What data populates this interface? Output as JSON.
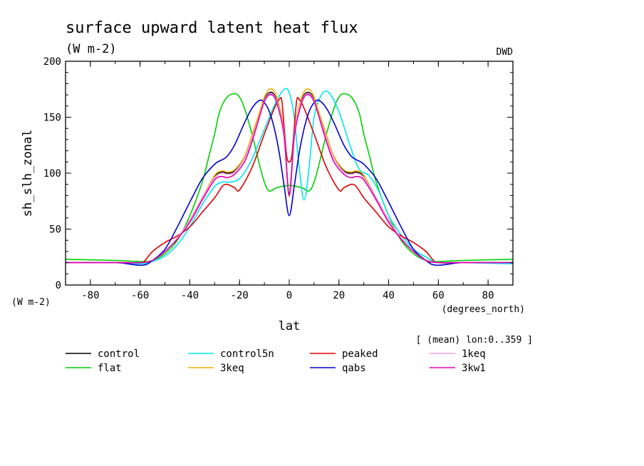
{
  "title": "surface upward latent heat flux",
  "units_top": "(W m-2)",
  "source": "DWD",
  "ylabel": "sh_slh_zonal",
  "y_units": "(W m-2)",
  "xlabel": "lat",
  "x_units": "(degrees_north)",
  "annotation": "[ (mean) lon:0..359 ]",
  "chart_data": {
    "type": "line",
    "title": "surface upward latent heat flux",
    "xlabel": "lat",
    "ylabel": "sh_slh_zonal",
    "xlim": [
      -90,
      90
    ],
    "ylim": [
      0,
      200
    ],
    "x_ticks": [
      -80,
      -60,
      -40,
      -20,
      0,
      20,
      40,
      60,
      80
    ],
    "y_ticks": [
      0,
      50,
      100,
      150,
      200
    ],
    "legend_position": "bottom",
    "series": [
      {
        "name": "control",
        "color": "#000000",
        "x": [
          -90,
          -70,
          -60,
          -55,
          -50,
          -45,
          -40,
          -35,
          -30,
          -27,
          -25,
          -22,
          -18,
          -15,
          -12,
          -10,
          -8,
          -6,
          -4,
          -2,
          0,
          2,
          4,
          6,
          8,
          10,
          12,
          15,
          18,
          22,
          25,
          27,
          30,
          35,
          40,
          45,
          50,
          55,
          60,
          70,
          90
        ],
        "y": [
          20,
          20,
          20,
          22,
          30,
          42,
          58,
          78,
          97,
          101,
          100,
          102,
          114,
          132,
          152,
          166,
          172,
          170,
          158,
          135,
          82,
          135,
          158,
          170,
          172,
          166,
          152,
          132,
          114,
          102,
          100,
          101,
          97,
          78,
          58,
          42,
          30,
          22,
          20,
          20,
          20
        ]
      },
      {
        "name": "flat",
        "color": "#00d000",
        "x": [
          -90,
          -70,
          -60,
          -55,
          -50,
          -45,
          -40,
          -35,
          -32,
          -30,
          -28,
          -25,
          -22,
          -20,
          -18,
          -15,
          -12,
          -10,
          -8,
          -5,
          0,
          5,
          8,
          10,
          12,
          15,
          18,
          20,
          22,
          25,
          28,
          30,
          32,
          35,
          40,
          45,
          50,
          55,
          60,
          70,
          90
        ],
        "y": [
          23,
          22,
          21,
          22,
          28,
          40,
          62,
          92,
          118,
          135,
          155,
          168,
          171,
          168,
          158,
          135,
          108,
          92,
          84,
          87,
          89,
          87,
          84,
          92,
          108,
          135,
          158,
          168,
          171,
          168,
          155,
          135,
          118,
          92,
          62,
          40,
          28,
          22,
          21,
          22,
          23
        ]
      },
      {
        "name": "control5n",
        "color": "#00e5ee",
        "x": [
          -90,
          -70,
          -60,
          -55,
          -50,
          -45,
          -40,
          -35,
          -30,
          -27,
          -24,
          -20,
          -16,
          -12,
          -8,
          -5,
          -2,
          0,
          2,
          4,
          6,
          8,
          10,
          13,
          16,
          20,
          24,
          28,
          32,
          36,
          40,
          45,
          50,
          55,
          60,
          70,
          90
        ],
        "y": [
          20,
          20,
          19,
          21,
          26,
          36,
          52,
          72,
          88,
          92,
          92,
          95,
          108,
          128,
          150,
          165,
          175,
          172,
          150,
          105,
          76,
          105,
          150,
          170,
          172,
          155,
          128,
          104,
          98,
          84,
          62,
          45,
          32,
          25,
          20,
          20,
          19
        ]
      },
      {
        "name": "3keq",
        "color": "#f0b000",
        "x": [
          -90,
          -70,
          -60,
          -55,
          -50,
          -45,
          -40,
          -35,
          -30,
          -27,
          -25,
          -22,
          -18,
          -15,
          -12,
          -10,
          -8,
          -6,
          -4,
          -2,
          0,
          2,
          4,
          6,
          8,
          10,
          12,
          15,
          18,
          22,
          25,
          27,
          30,
          35,
          40,
          45,
          50,
          55,
          60,
          70,
          90
        ],
        "y": [
          20,
          20,
          20,
          22,
          30,
          42,
          58,
          78,
          98,
          102,
          101,
          103,
          115,
          134,
          154,
          168,
          175,
          173,
          160,
          136,
          79,
          136,
          160,
          173,
          175,
          168,
          154,
          134,
          115,
          103,
          101,
          102,
          98,
          78,
          58,
          42,
          30,
          22,
          20,
          20,
          20
        ]
      },
      {
        "name": "peaked",
        "color": "#e00000",
        "x": [
          -90,
          -70,
          -60,
          -58,
          -55,
          -50,
          -45,
          -40,
          -35,
          -30,
          -27,
          -25,
          -22,
          -20,
          -15,
          -10,
          -6,
          -4,
          -3,
          -2,
          -1,
          0,
          1,
          2,
          3,
          4,
          6,
          10,
          15,
          20,
          22,
          25,
          27,
          30,
          35,
          40,
          45,
          50,
          55,
          58,
          60,
          70,
          90
        ],
        "y": [
          20,
          20,
          20,
          22,
          30,
          38,
          44,
          52,
          65,
          78,
          88,
          90,
          87,
          85,
          105,
          135,
          158,
          166,
          165,
          140,
          115,
          110,
          115,
          140,
          165,
          166,
          158,
          135,
          105,
          85,
          87,
          90,
          88,
          78,
          65,
          52,
          44,
          38,
          30,
          22,
          20,
          20,
          20
        ]
      },
      {
        "name": "qabs",
        "color": "#0000d0",
        "x": [
          -90,
          -70,
          -62,
          -58,
          -55,
          -50,
          -45,
          -40,
          -35,
          -30,
          -27,
          -25,
          -22,
          -18,
          -15,
          -12,
          -10,
          -8,
          -6,
          -4,
          -2,
          0,
          2,
          4,
          6,
          8,
          10,
          12,
          15,
          18,
          22,
          25,
          27,
          30,
          35,
          40,
          45,
          50,
          55,
          58,
          62,
          70,
          90
        ],
        "y": [
          20,
          20,
          18,
          18,
          22,
          32,
          52,
          74,
          95,
          108,
          112,
          115,
          125,
          145,
          158,
          165,
          163,
          155,
          140,
          118,
          88,
          62,
          88,
          118,
          140,
          155,
          163,
          165,
          158,
          145,
          125,
          115,
          112,
          108,
          95,
          74,
          52,
          32,
          22,
          18,
          18,
          20,
          20
        ]
      },
      {
        "name": "1keq",
        "color": "#f0a0e0",
        "x": [
          -90,
          -70,
          -60,
          -55,
          -50,
          -45,
          -40,
          -35,
          -30,
          -27,
          -25,
          -22,
          -18,
          -15,
          -12,
          -10,
          -8,
          -6,
          -4,
          -2,
          0,
          2,
          4,
          6,
          8,
          10,
          12,
          15,
          18,
          22,
          25,
          27,
          30,
          35,
          40,
          45,
          50,
          55,
          60,
          70,
          90
        ],
        "y": [
          20,
          20,
          20,
          22,
          30,
          42,
          58,
          78,
          96,
          100,
          99,
          101,
          113,
          131,
          151,
          165,
          171,
          169,
          157,
          134,
          80,
          134,
          157,
          169,
          171,
          165,
          151,
          131,
          113,
          101,
          99,
          100,
          96,
          78,
          58,
          42,
          30,
          22,
          20,
          20,
          20
        ]
      },
      {
        "name": "3kw1",
        "color": "#e000b0",
        "x": [
          -90,
          -70,
          -60,
          -55,
          -50,
          -45,
          -40,
          -35,
          -30,
          -27,
          -25,
          -22,
          -18,
          -15,
          -12,
          -10,
          -8,
          -6,
          -4,
          -2,
          0,
          2,
          4,
          6,
          8,
          10,
          12,
          15,
          18,
          22,
          25,
          27,
          30,
          35,
          40,
          45,
          50,
          55,
          60,
          70,
          90
        ],
        "y": [
          20,
          20,
          20,
          22,
          30,
          41,
          56,
          76,
          94,
          97,
          96,
          99,
          110,
          128,
          150,
          164,
          170,
          168,
          155,
          132,
          80,
          132,
          155,
          168,
          170,
          164,
          150,
          128,
          110,
          99,
          96,
          97,
          94,
          76,
          56,
          41,
          30,
          22,
          20,
          20,
          20
        ]
      }
    ]
  }
}
